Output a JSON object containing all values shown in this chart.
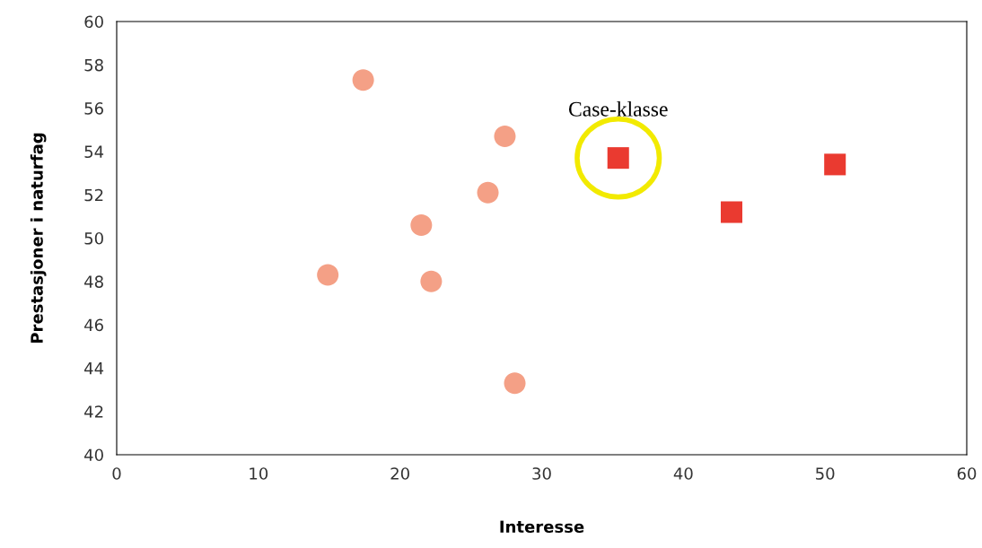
{
  "chart_data": {
    "type": "scatter",
    "xlabel": "Interesse",
    "ylabel": "Prestasjoner i naturfag",
    "series": [
      {
        "color": "#f4a086",
        "marker": "circle",
        "x": [
          17.4,
          27.4,
          26.2,
          21.5,
          14.9,
          22.2,
          28.1
        ],
        "values": [
          57.3,
          54.7,
          52.1,
          50.6,
          48.3,
          48.0,
          43.3
        ]
      },
      {
        "color": "#ea3a30",
        "marker": "square",
        "x": [
          35.4,
          43.4,
          50.7
        ],
        "values": [
          53.7,
          51.2,
          53.4
        ]
      }
    ],
    "annotations": [
      {
        "text": "Case-klasse",
        "x": 35.4,
        "y": 53.7
      }
    ],
    "xlim": [
      0,
      60
    ],
    "xticks": [
      0,
      10,
      20,
      30,
      40,
      50,
      60
    ],
    "ylim": [
      40,
      60
    ],
    "yticks": [
      40,
      42,
      44,
      46,
      48,
      50,
      52,
      54,
      56,
      58,
      60
    ],
    "grid": false,
    "legend": false
  }
}
